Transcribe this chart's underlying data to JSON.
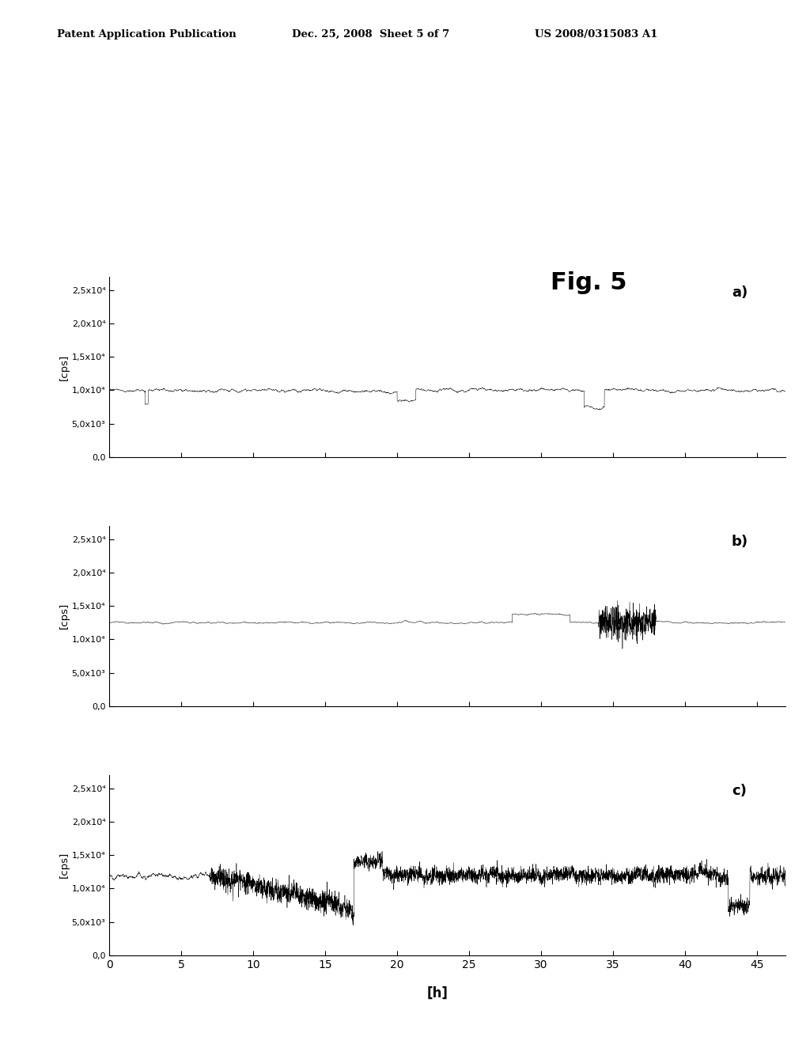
{
  "fig_label": "Fig. 5",
  "patent_header": "Patent Application Publication",
  "patent_date": "Dec. 25, 2008  Sheet 5 of 7",
  "patent_number": "US 2008/0315083 A1",
  "xlabel": "[h]",
  "ylabel": "[cps]",
  "x_max": 47,
  "x_ticks": [
    0,
    5,
    10,
    15,
    20,
    25,
    30,
    35,
    40,
    45
  ],
  "ytick_labels": [
    "0,0",
    "5,0x10³",
    "1,0x10⁴",
    "1,5x10⁴",
    "2,0x10⁴",
    "2,5x10⁴"
  ],
  "ytick_values": [
    0,
    5000,
    10000,
    15000,
    20000,
    25000
  ],
  "ylim": [
    0,
    27000
  ],
  "panel_labels": [
    "a)",
    "b)",
    "c)"
  ],
  "bg_color": "#ffffff",
  "line_color": "#000000",
  "signal_a_base": 10000,
  "signal_a_noise": 400,
  "signal_b_base": 12500,
  "signal_b_noise": 300,
  "signal_c_base": 12000,
  "signal_c_noise": 800
}
